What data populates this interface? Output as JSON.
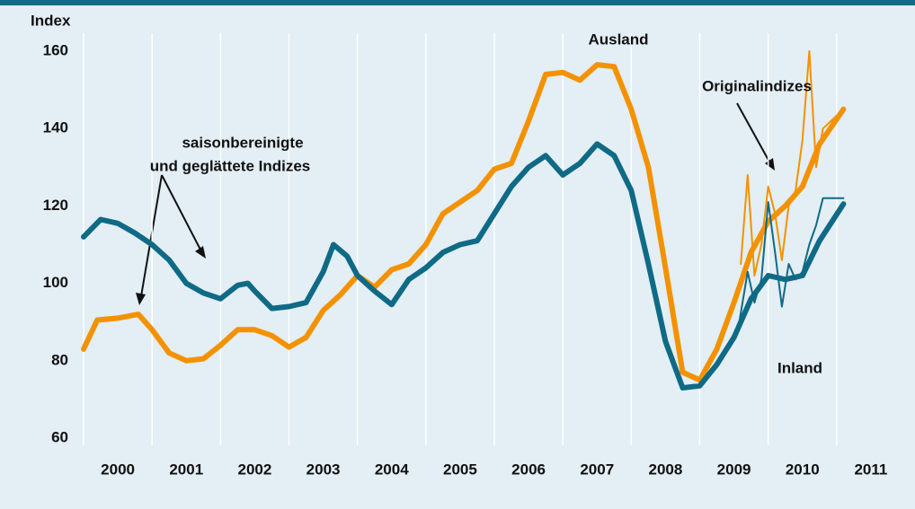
{
  "chart_data": {
    "type": "line",
    "y_label": "Index",
    "annotations": [
      "saisonbereinigte",
      "und geglättete Indizes",
      "Originalindizes"
    ],
    "xlim": [
      2000,
      2012
    ],
    "xticks": [
      2000,
      2001,
      2002,
      2003,
      2004,
      2005,
      2006,
      2007,
      2008,
      2009,
      2010,
      2011
    ],
    "ylim": [
      60,
      160
    ],
    "yticks": [
      60,
      80,
      100,
      120,
      140,
      160
    ],
    "grid": true,
    "series": [
      {
        "name": "Ausland",
        "color": "#f39200",
        "width": 6,
        "x": [
          2000.0,
          2000.2,
          2000.5,
          2000.8,
          2001.0,
          2001.25,
          2001.5,
          2001.75,
          2002.0,
          2002.25,
          2002.5,
          2002.75,
          2003.0,
          2003.25,
          2003.5,
          2003.75,
          2004.0,
          2004.25,
          2004.5,
          2004.75,
          2005.0,
          2005.25,
          2005.5,
          2005.75,
          2006.0,
          2006.25,
          2006.5,
          2006.75,
          2007.0,
          2007.25,
          2007.5,
          2007.75,
          2008.0,
          2008.25,
          2008.5,
          2008.75,
          2009.0,
          2009.25,
          2009.5,
          2009.75,
          2010.0,
          2010.25,
          2010.5,
          2010.75,
          2011.1
        ],
        "values": [
          83,
          90.5,
          91,
          92,
          88,
          82,
          80,
          80.5,
          84,
          88,
          88,
          86.5,
          83.5,
          86,
          93,
          97,
          102,
          99,
          103.5,
          105,
          110,
          118,
          121,
          124,
          129.5,
          131,
          142,
          154,
          154.5,
          152.5,
          156.5,
          156,
          145,
          130,
          104,
          77,
          75,
          83,
          95,
          108,
          116,
          120,
          125,
          136,
          145
        ]
      },
      {
        "name": "Inland",
        "color": "#0f6a85",
        "width": 6,
        "x": [
          2000.0,
          2000.25,
          2000.5,
          2000.75,
          2001.0,
          2001.25,
          2001.5,
          2001.75,
          2002.0,
          2002.25,
          2002.4,
          2002.5,
          2002.75,
          2003.0,
          2003.25,
          2003.5,
          2003.65,
          2003.85,
          2004.0,
          2004.25,
          2004.5,
          2004.75,
          2005.0,
          2005.25,
          2005.5,
          2005.75,
          2006.0,
          2006.25,
          2006.5,
          2006.75,
          2007.0,
          2007.25,
          2007.5,
          2007.75,
          2008.0,
          2008.25,
          2008.5,
          2008.75,
          2009.0,
          2009.25,
          2009.5,
          2009.75,
          2010.0,
          2010.25,
          2010.5,
          2010.75,
          2011.1
        ],
        "values": [
          112,
          116.5,
          115.5,
          113,
          110,
          106,
          100,
          97.5,
          96,
          99.5,
          100,
          98,
          93.5,
          94,
          95,
          103,
          110,
          107,
          102,
          98,
          94.5,
          101,
          104,
          108,
          110,
          111,
          118,
          125,
          130,
          133,
          128,
          131,
          136,
          133,
          124,
          105,
          85,
          73,
          73.5,
          79,
          86,
          96,
          102,
          101,
          102,
          111,
          120.5
        ]
      },
      {
        "color": "#f39200",
        "width": 2,
        "x": [
          2009.6,
          2009.7,
          2009.8,
          2009.9,
          2010.0,
          2010.1,
          2010.2,
          2010.3,
          2010.4,
          2010.5,
          2010.6,
          2010.7,
          2010.8,
          2011.1
        ],
        "values": [
          105,
          128,
          102,
          110,
          125,
          118,
          106,
          120,
          124,
          137,
          160,
          130,
          140,
          145
        ]
      },
      {
        "color": "#0f6a85",
        "width": 2,
        "x": [
          2009.55,
          2009.7,
          2009.8,
          2009.9,
          2010.0,
          2010.1,
          2010.2,
          2010.3,
          2010.4,
          2010.5,
          2010.6,
          2010.7,
          2010.8,
          2011.1
        ],
        "values": [
          87,
          103,
          95,
          101,
          121,
          108,
          94,
          105,
          101,
          103,
          110,
          115,
          122,
          122
        ]
      }
    ]
  }
}
